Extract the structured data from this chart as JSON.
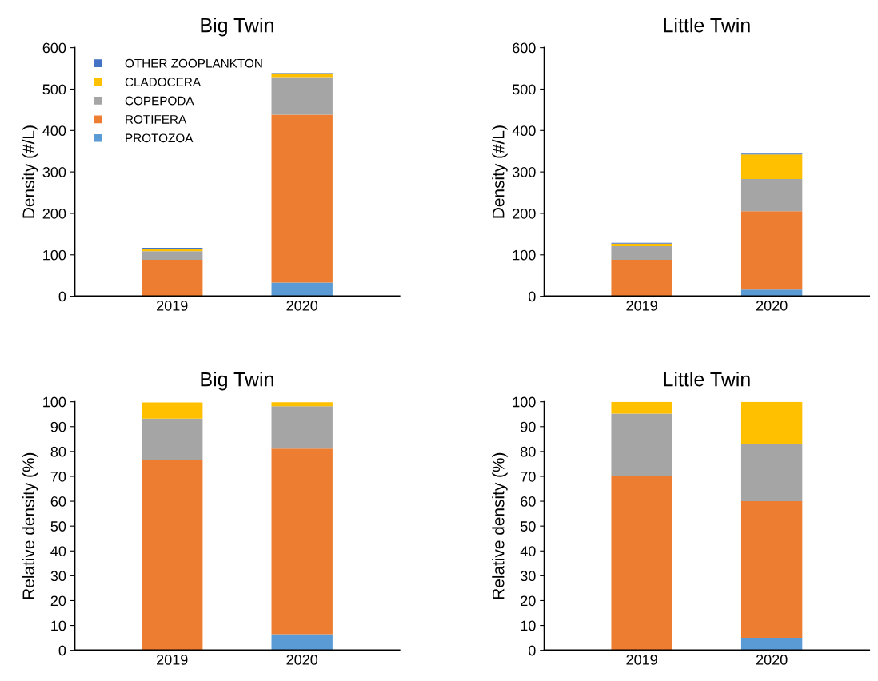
{
  "chart_data": [
    {
      "type": "bar",
      "stacked": true,
      "title": "Big Twin",
      "ylabel": "Density (#/L)",
      "categories": [
        "2019",
        "2020"
      ],
      "ylim": [
        0,
        600
      ],
      "yticks": [
        0,
        100,
        200,
        300,
        400,
        500,
        600
      ],
      "grid": false,
      "legend": "top left",
      "series": [
        {
          "name": "PROTOZOA",
          "color": "#5b9bd5",
          "values": [
            0,
            33
          ]
        },
        {
          "name": "ROTIFERA",
          "color": "#ed7d31",
          "values": [
            88,
            405
          ]
        },
        {
          "name": "COPEPODA",
          "color": "#a5a5a5",
          "values": [
            21,
            91
          ]
        },
        {
          "name": "CLADOCERA",
          "color": "#ffc000",
          "values": [
            6,
            9
          ]
        },
        {
          "name": "OTHER ZOOPLANKTON",
          "color": "#4472c4",
          "values": [
            2,
            1
          ]
        }
      ]
    },
    {
      "type": "bar",
      "stacked": true,
      "title": "Little Twin",
      "ylabel": "Density (#/L)",
      "categories": [
        "2019",
        "2020"
      ],
      "ylim": [
        0,
        600
      ],
      "yticks": [
        0,
        100,
        200,
        300,
        400,
        500,
        600
      ],
      "grid": false,
      "legend": false,
      "series": [
        {
          "color": "#5b9bd5",
          "values": [
            0,
            16
          ]
        },
        {
          "color": "#ed7d31",
          "values": [
            88,
            189
          ]
        },
        {
          "color": "#a5a5a5",
          "values": [
            33,
            78
          ]
        },
        {
          "color": "#ffc000",
          "values": [
            6,
            59
          ]
        },
        {
          "color": "#4472c4",
          "values": [
            2,
            2
          ]
        }
      ]
    },
    {
      "type": "bar",
      "stacked": true,
      "title": "Big Twin",
      "ylabel": "Relative density (%)",
      "categories": [
        "2019",
        "2020"
      ],
      "ylim": [
        0,
        100
      ],
      "yticks": [
        0,
        10,
        20,
        30,
        40,
        50,
        60,
        70,
        80,
        90,
        100
      ],
      "grid": false,
      "legend": false,
      "series": [
        {
          "color": "#5b9bd5",
          "values": [
            0,
            6.5
          ]
        },
        {
          "color": "#ed7d31",
          "values": [
            76.5,
            74.7
          ]
        },
        {
          "color": "#a5a5a5",
          "values": [
            16.7,
            17
          ]
        },
        {
          "color": "#ffc000",
          "values": [
            6.5,
            1.6
          ]
        },
        {
          "color": "#4472c4",
          "values": [
            null,
            null
          ]
        }
      ]
    },
    {
      "type": "bar",
      "stacked": true,
      "title": "Little Twin",
      "ylabel": "Relative density (%)",
      "categories": [
        "2019",
        "2020"
      ],
      "ylim": [
        0,
        100
      ],
      "yticks": [
        0,
        10,
        20,
        30,
        40,
        50,
        60,
        70,
        80,
        90,
        100
      ],
      "grid": false,
      "legend": false,
      "series": [
        {
          "color": "#5b9bd5",
          "values": [
            0,
            5
          ]
        },
        {
          "color": "#ed7d31",
          "values": [
            70.2,
            55
          ]
        },
        {
          "color": "#a5a5a5",
          "values": [
            25,
            23
          ]
        },
        {
          "color": "#ffc000",
          "values": [
            4.8,
            17
          ]
        },
        {
          "color": "#4472c4",
          "values": [
            0,
            0
          ]
        }
      ]
    }
  ]
}
